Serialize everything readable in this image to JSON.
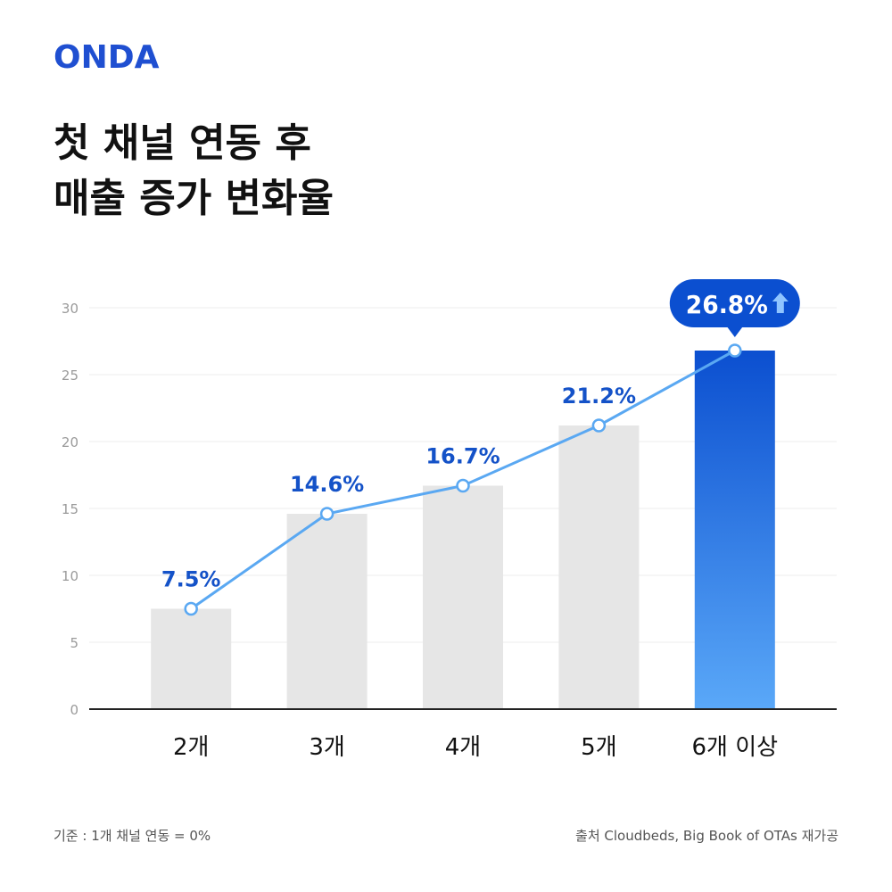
{
  "brand": {
    "logo_text": "ONDA",
    "color": "#1f4fd1"
  },
  "title_lines": [
    "첫 채널 연동 후",
    "매출 증가 변화율"
  ],
  "footer": {
    "basis": "기준 : 1개 채널 연동 = 0%",
    "source": "출처 Cloudbeds, Big Book of OTAs 재가공"
  },
  "colors": {
    "bar_gray": "#e6e6e6",
    "bar_highlight_top": "#0b4fd0",
    "bar_highlight_bottom": "#5aa8f8",
    "line": "#5aa8f2",
    "label": "#1452c8",
    "badge": "#0b4fd0"
  },
  "chart_data": {
    "type": "bar",
    "categories": [
      "2개",
      "3개",
      "4개",
      "5개",
      "6개 이상"
    ],
    "values": [
      7.5,
      14.6,
      16.7,
      21.2,
      26.8
    ],
    "data_labels": [
      "7.5%",
      "14.6%",
      "16.7%",
      "21.2%",
      "26.8%"
    ],
    "highlight_index": 4,
    "highlight_icon": "arrow-up-icon",
    "overlay_line": true,
    "yticks": [
      "0",
      "5",
      "10",
      "15",
      "20",
      "25",
      "30"
    ],
    "ylim": [
      0,
      30
    ],
    "grid": true,
    "legend": "none"
  }
}
